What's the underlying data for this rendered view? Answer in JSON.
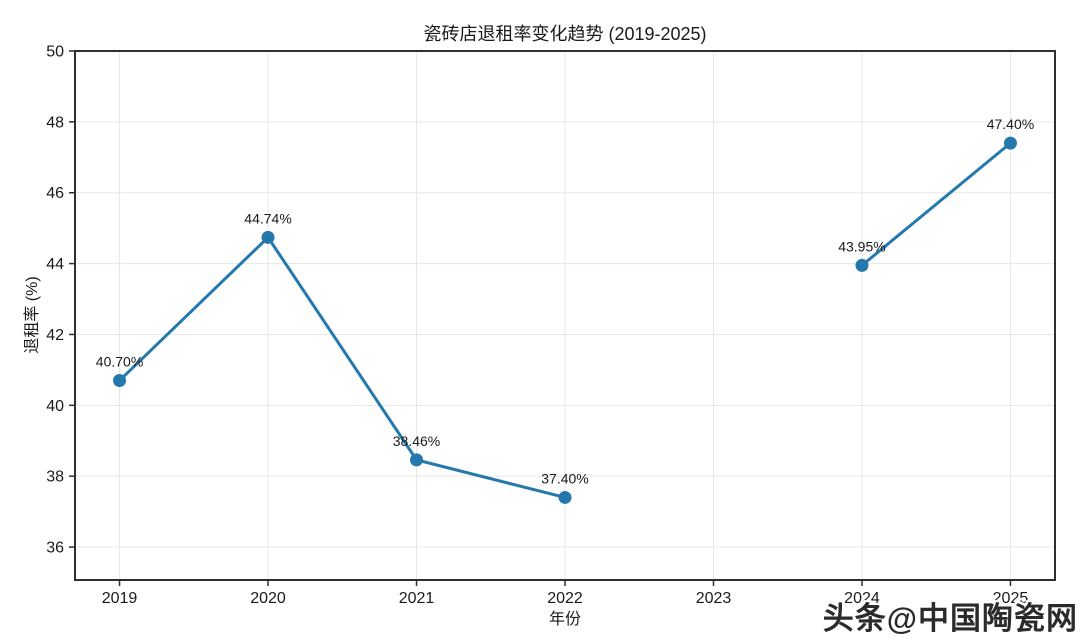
{
  "chart_data": {
    "type": "line",
    "title": "瓷砖店退租率变化趋势 (2019-2025)",
    "xlabel": "年份",
    "ylabel": "退租率 (%)",
    "x": [
      2019,
      2020,
      2021,
      2022,
      2023,
      2024,
      2025
    ],
    "xtick_labels": [
      "2019",
      "2020",
      "2021",
      "2022",
      "2023",
      "2024",
      "2025"
    ],
    "yticks": [
      36,
      38,
      40,
      42,
      44,
      46,
      48,
      50
    ],
    "ytick_labels": [
      "36",
      "38",
      "40",
      "42",
      "44",
      "46",
      "48",
      "50"
    ],
    "xlim": [
      2018.7,
      2025.3
    ],
    "ylim": [
      35.07,
      50
    ],
    "grid": true,
    "legend": null,
    "series": [
      {
        "name": "退租率",
        "values": [
          40.7,
          44.74,
          38.46,
          37.4,
          null,
          43.95,
          47.4
        ],
        "point_labels": [
          "40.70%",
          "44.74%",
          "38.46%",
          "37.40%",
          null,
          "43.95%",
          "47.40%"
        ],
        "color": "#2478ad",
        "marker": "circle"
      }
    ],
    "colors": {
      "grid": "#e7e7e7",
      "spine": "#2f2f2f",
      "tick_text": "#1a1a1a",
      "annotation_text": "#111111",
      "background": "#ffffff"
    }
  },
  "watermark": {
    "text": "头条@中国陶瓷网"
  }
}
